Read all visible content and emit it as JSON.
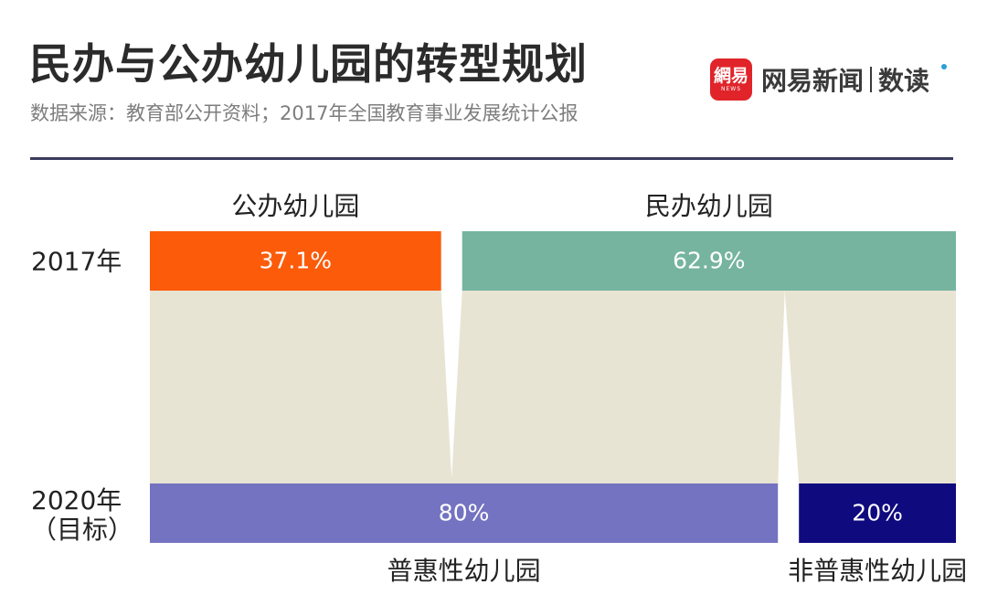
{
  "header": {
    "title": "民办与公办幼儿园的转型规划",
    "subtitle": "数据来源：教育部公开资料；2017年全国教育事业发展统计公报"
  },
  "brand": {
    "logo_glyph": "網易",
    "logo_small": "NEWS",
    "name": "网易新闻",
    "sub": "数读",
    "color": "#e0242a",
    "dot_color": "#2a9fd8"
  },
  "chart_data": {
    "type": "bar",
    "layout_kind": "100%-stacked-horizontal",
    "rows": [
      {
        "label_lines": [
          "2017年"
        ],
        "segments": [
          {
            "category": "公办幼儿园",
            "value": 37.1,
            "label": "37.1%",
            "color": "#fc5b0a"
          },
          {
            "category": "民办幼儿园",
            "value": 62.9,
            "label": "62.9%",
            "color": "#76b4a0"
          }
        ]
      },
      {
        "label_lines": [
          "2020年",
          "（目标）"
        ],
        "segments": [
          {
            "category": "普惠性幼儿园",
            "value": 80,
            "label": "80%",
            "color": "#7473c1"
          },
          {
            "category": "非普惠性幼儿园",
            "value": 20,
            "label": "20%",
            "color": "#100a7f"
          }
        ]
      }
    ],
    "flow_color": "#e8e4d4",
    "unit": "%"
  }
}
